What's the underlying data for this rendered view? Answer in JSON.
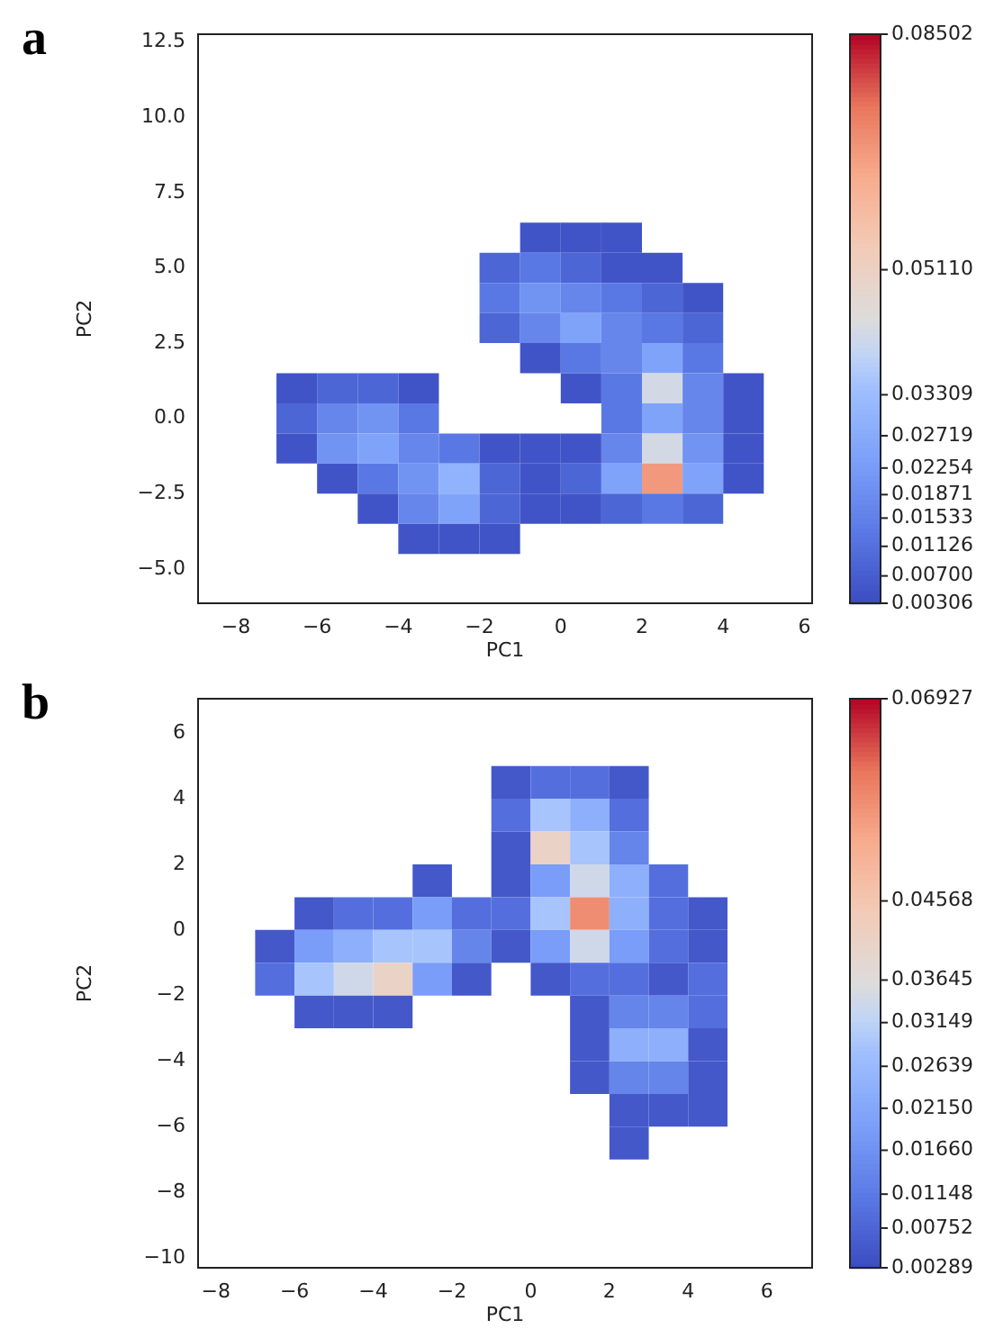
{
  "chart_data": [
    {
      "type": "heatmap",
      "title": "a",
      "xlabel": "PC1",
      "ylabel": "PC2",
      "x": [
        -6.5,
        -5.5,
        -4.5,
        -3.5,
        -2.5,
        -1.5,
        -0.5,
        0.5,
        1.5,
        2.5,
        3.5,
        4.5
      ],
      "y": [
        6,
        5,
        4,
        3,
        2,
        1,
        0,
        -1,
        -2,
        -3,
        -4
      ],
      "cells": [
        [
          null,
          null,
          null,
          null,
          null,
          null,
          0.005,
          0.005,
          0.005,
          null,
          null,
          null
        ],
        [
          null,
          null,
          null,
          null,
          null,
          0.0091,
          0.0133,
          0.0091,
          0.005,
          0.005,
          null,
          null
        ],
        [
          null,
          null,
          null,
          null,
          null,
          0.0133,
          0.0206,
          0.017,
          0.0133,
          0.0091,
          0.005,
          null
        ],
        [
          null,
          null,
          null,
          null,
          null,
          0.0091,
          0.017,
          0.0249,
          0.017,
          0.0133,
          0.0091,
          null
        ],
        [
          null,
          null,
          null,
          null,
          null,
          null,
          0.005,
          0.0133,
          0.017,
          0.0249,
          0.0133,
          null
        ],
        [
          0.005,
          0.0091,
          0.0091,
          0.005,
          null,
          null,
          null,
          0.005,
          0.0133,
          0.0421,
          0.017,
          0.005
        ],
        [
          0.0091,
          0.017,
          0.0206,
          0.0133,
          null,
          null,
          null,
          null,
          0.0133,
          0.0249,
          0.017,
          0.005
        ],
        [
          0.005,
          0.0206,
          0.0249,
          0.017,
          0.0133,
          0.005,
          0.005,
          0.005,
          0.017,
          0.0421,
          0.0206,
          0.005
        ],
        [
          null,
          0.005,
          0.0133,
          0.0206,
          0.0301,
          0.0091,
          0.005,
          0.0091,
          0.0249,
          0.0681,
          0.0249,
          0.005
        ],
        [
          null,
          null,
          0.005,
          0.017,
          0.0249,
          0.0091,
          0.005,
          0.005,
          0.0091,
          0.0133,
          0.0091,
          null
        ],
        [
          null,
          null,
          null,
          0.005,
          0.005,
          0.005,
          null,
          null,
          null,
          null,
          null,
          null
        ]
      ],
      "xlim": [
        -8.93,
        6.19
      ],
      "xticks": [
        {
          "value": -8,
          "label": "−8"
        },
        {
          "value": -6,
          "label": "−6"
        },
        {
          "value": -4,
          "label": "−4"
        },
        {
          "value": -2,
          "label": "−2"
        },
        0,
        2,
        4,
        6
      ],
      "ylim": [
        -6.14,
        12.76
      ],
      "yticks": [
        {
          "value": -5,
          "label": "−5.0"
        },
        {
          "value": -2.5,
          "label": "−2.5"
        },
        {
          "value": 0,
          "label": "0.0"
        },
        2.5,
        {
          "value": 5,
          "label": "5.0"
        },
        7.5,
        {
          "value": 10,
          "label": "10.0"
        },
        12.5
      ],
      "clim": [
        0.00306,
        0.08502
      ],
      "cticks": [
        0.00306,
        {
          "value": 0.007,
          "label": "0.00700"
        },
        0.01126,
        0.01533,
        0.01871,
        0.02254,
        0.02719,
        0.03309,
        {
          "value": 0.0511,
          "label": "0.05110"
        },
        0.08502
      ]
    },
    {
      "type": "heatmap",
      "title": "b",
      "xlabel": "PC1",
      "ylabel": "PC2",
      "x": [
        -6.5,
        -5.5,
        -4.5,
        -3.5,
        -2.5,
        -1.5,
        -0.5,
        0.5,
        1.5,
        2.5,
        3.5,
        4.5
      ],
      "y": [
        4.5,
        3.5,
        2.5,
        1.5,
        0.5,
        -0.5,
        -1.5,
        -2.5,
        -3.5,
        -4.5,
        -5.5,
        -6.5
      ],
      "cells": [
        [
          null,
          null,
          null,
          null,
          null,
          null,
          0.0052,
          0.0095,
          0.0095,
          0.0052,
          null,
          null
        ],
        [
          null,
          null,
          null,
          null,
          null,
          null,
          0.0095,
          0.0289,
          0.0239,
          0.0095,
          null,
          null
        ],
        [
          null,
          null,
          null,
          null,
          null,
          null,
          0.0052,
          0.0411,
          0.0289,
          0.014,
          null,
          null
        ],
        [
          null,
          null,
          null,
          null,
          0.0052,
          null,
          0.0052,
          0.0191,
          0.034,
          0.0239,
          0.0095,
          null
        ],
        [
          null,
          0.0052,
          0.0095,
          0.0095,
          0.0191,
          0.0095,
          0.0095,
          0.0289,
          0.0575,
          0.0239,
          0.0095,
          0.0052
        ],
        [
          0.0052,
          0.0191,
          0.0239,
          0.0289,
          0.0289,
          0.014,
          0.0052,
          0.0191,
          0.034,
          0.0191,
          0.0095,
          0.0052
        ],
        [
          0.0095,
          0.0289,
          0.034,
          0.0411,
          0.0191,
          0.0052,
          null,
          0.0052,
          0.0095,
          0.0095,
          0.0052,
          0.0095
        ],
        [
          null,
          0.0052,
          0.0052,
          0.0052,
          null,
          null,
          null,
          null,
          0.0052,
          0.014,
          0.014,
          0.0095
        ],
        [
          null,
          null,
          null,
          null,
          null,
          null,
          null,
          null,
          0.0052,
          0.0239,
          0.0239,
          0.0052
        ],
        [
          null,
          null,
          null,
          null,
          null,
          null,
          null,
          null,
          0.0052,
          0.014,
          0.014,
          0.0052
        ],
        [
          null,
          null,
          null,
          null,
          null,
          null,
          null,
          null,
          null,
          0.0052,
          0.0052,
          0.0052
        ],
        [
          null,
          null,
          null,
          null,
          null,
          null,
          null,
          null,
          null,
          0.0052,
          null,
          null
        ]
      ],
      "xlim": [
        -8.45,
        7.15
      ],
      "xticks": [
        {
          "value": -8,
          "label": "−8"
        },
        {
          "value": -6,
          "label": "−6"
        },
        {
          "value": -4,
          "label": "−4"
        },
        {
          "value": -2,
          "label": "−2"
        },
        0,
        2,
        4,
        6
      ],
      "ylim": [
        -10.3,
        7.05
      ],
      "yticks": [
        {
          "value": -10,
          "label": "−10"
        },
        {
          "value": -8,
          "label": "−8"
        },
        {
          "value": -6,
          "label": "−6"
        },
        {
          "value": -4,
          "label": "−4"
        },
        {
          "value": -2,
          "label": "−2"
        },
        0,
        2,
        4,
        6
      ],
      "clim": [
        0.00289,
        0.06927
      ],
      "cticks": [
        0.00289,
        0.00752,
        0.01148,
        {
          "value": 0.0166,
          "label": "0.01660"
        },
        {
          "value": 0.0215,
          "label": "0.02150"
        },
        0.02639,
        0.03149,
        0.03645,
        0.04568,
        0.06927
      ]
    }
  ]
}
